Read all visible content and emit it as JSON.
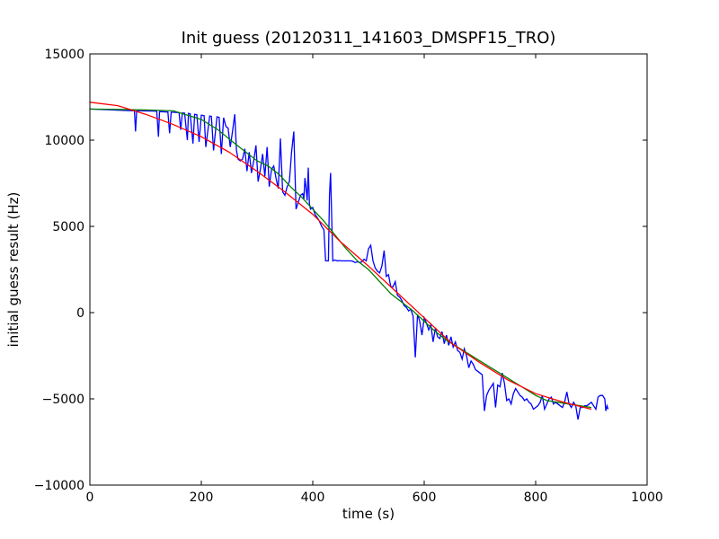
{
  "chart_data": {
    "type": "line",
    "title": "Init guess (20120311_141603_DMSPF15_TRO)",
    "xlabel": "time (s)",
    "ylabel": "initial guess result (Hz)",
    "xlim": [
      0,
      1000
    ],
    "ylim": [
      -10000,
      15000
    ],
    "xticks": [
      0,
      200,
      400,
      600,
      800,
      1000
    ],
    "yticks": [
      -10000,
      -5000,
      0,
      5000,
      10000,
      15000
    ],
    "xtick_labels": [
      "0",
      "200",
      "400",
      "600",
      "800",
      "1000"
    ],
    "ytick_labels": [
      "−10000",
      "−5000",
      "0",
      "5000",
      "10000",
      "15000"
    ],
    "grid": false,
    "legend": "none",
    "series": [
      {
        "color": "#0000ff",
        "x": [
          0,
          40,
          80,
          82,
          84,
          88,
          120,
          123,
          125,
          128,
          140,
          143,
          146,
          160,
          163,
          166,
          170,
          175,
          177,
          180,
          185,
          188,
          192,
          196,
          200,
          205,
          208,
          215,
          218,
          222,
          228,
          232,
          236,
          240,
          244,
          248,
          252,
          256,
          260,
          263,
          266,
          270,
          274,
          278,
          282,
          286,
          290,
          294,
          298,
          302,
          306,
          310,
          314,
          318,
          322,
          326,
          330,
          334,
          338,
          342,
          346,
          350,
          354,
          358,
          362,
          366,
          370,
          374,
          378,
          382,
          384,
          386,
          388,
          390,
          392,
          394,
          396,
          400,
          404,
          408,
          412,
          416,
          420,
          423,
          426,
          428,
          430,
          432,
          436,
          440,
          444,
          448,
          452,
          456,
          460,
          464,
          468,
          472,
          476,
          480,
          484,
          488,
          492,
          496,
          500,
          504,
          508,
          512,
          516,
          520,
          524,
          528,
          532,
          536,
          540,
          544,
          548,
          552,
          556,
          560,
          564,
          568,
          572,
          576,
          580,
          584,
          588,
          592,
          596,
          600,
          604,
          608,
          612,
          616,
          620,
          624,
          628,
          632,
          636,
          640,
          644,
          648,
          652,
          656,
          660,
          664,
          668,
          672,
          676,
          680,
          684,
          688,
          692,
          696,
          700,
          704,
          708,
          712,
          716,
          720,
          724,
          728,
          732,
          736,
          740,
          744,
          748,
          752,
          756,
          760,
          764,
          768,
          772,
          776,
          780,
          784,
          788,
          792,
          796,
          800,
          804,
          808,
          812,
          816,
          820,
          824,
          828,
          832,
          836,
          840,
          844,
          848,
          852,
          856,
          860,
          864,
          868,
          872,
          876,
          880,
          884,
          888,
          892,
          896,
          900,
          904,
          908,
          912,
          916,
          920,
          924,
          926,
          928,
          930
        ],
        "y": [
          11800,
          11750,
          11700,
          10500,
          11700,
          11700,
          11680,
          10200,
          11650,
          11650,
          11630,
          10400,
          11620,
          11600,
          10600,
          11580,
          11560,
          10000,
          11550,
          11530,
          9800,
          11500,
          11480,
          9900,
          11450,
          11420,
          9600,
          11400,
          11380,
          9400,
          11350,
          11320,
          9200,
          11300,
          10800,
          10700,
          9600,
          10500,
          11500,
          9400,
          8900,
          8800,
          8900,
          9500,
          8200,
          9300,
          8100,
          8800,
          9700,
          7600,
          8300,
          9200,
          7900,
          9600,
          7300,
          8300,
          8500,
          7800,
          7200,
          10100,
          7000,
          6800,
          7300,
          7600,
          9300,
          10500,
          6000,
          6400,
          6800,
          6900,
          6600,
          7800,
          7200,
          6500,
          8400,
          6300,
          6000,
          6100,
          5700,
          5500,
          5300,
          5000,
          4800,
          3000,
          3000,
          3000,
          6800,
          8100,
          3000,
          3050,
          3000,
          3020,
          3000,
          3000,
          3000,
          3000,
          3000,
          2980,
          2900,
          2950,
          2900,
          2950,
          3100,
          3000,
          3700,
          3900,
          3000,
          2600,
          2400,
          2300,
          2700,
          3600,
          2100,
          2200,
          1500,
          1500,
          1800,
          1000,
          900,
          700,
          400,
          300,
          100,
          200,
          -200,
          -2600,
          -100,
          -500,
          -1300,
          -300,
          -600,
          -1000,
          -700,
          -1700,
          -900,
          -1400,
          -1500,
          -1100,
          -1800,
          -1300,
          -1900,
          -1400,
          -2000,
          -1700,
          -2200,
          -2300,
          -2700,
          -2100,
          -2500,
          -3200,
          -2800,
          -3000,
          -3300,
          -3400,
          -3500,
          -3600,
          -5700,
          -4800,
          -4500,
          -4300,
          -4100,
          -5500,
          -4200,
          -4300,
          -3500,
          -4100,
          -5100,
          -5000,
          -5300,
          -4700,
          -4400,
          -4600,
          -4800,
          -4900,
          -5100,
          -5000,
          -5200,
          -5300,
          -5600,
          -5500,
          -5400,
          -5200,
          -4800,
          -5600,
          -5300,
          -5000,
          -4900,
          -5300,
          -5200,
          -5300,
          -5400,
          -5500,
          -5200,
          -4600,
          -5300,
          -5500,
          -5200,
          -5400,
          -6200,
          -5500,
          -5500,
          -5400,
          -5400,
          -5300,
          -5200,
          -5400,
          -5600,
          -4900,
          -4800,
          -4800,
          -5000,
          -5700,
          -5400,
          -5600
        ]
      },
      {
        "color": "#008000",
        "x": [
          0,
          50,
          100,
          150,
          200,
          230,
          260,
          280,
          300,
          320,
          340,
          360,
          380,
          400,
          420,
          440,
          460,
          480,
          500,
          520,
          540,
          560,
          580,
          600,
          620,
          640,
          660,
          680,
          700,
          720,
          740,
          760,
          780,
          800,
          820,
          840,
          860,
          880,
          900
        ],
        "y": [
          11800,
          11780,
          11750,
          11700,
          11200,
          10600,
          9800,
          9300,
          8800,
          8500,
          8000,
          7300,
          6700,
          6000,
          5300,
          4500,
          3700,
          3000,
          2500,
          1800,
          1100,
          600,
          100,
          -500,
          -1100,
          -1600,
          -2000,
          -2400,
          -2800,
          -3200,
          -3600,
          -4000,
          -4400,
          -4800,
          -5100,
          -5200,
          -5300,
          -5400,
          -5500
        ]
      },
      {
        "color": "#ff0000",
        "x": [
          0,
          50,
          100,
          150,
          200,
          250,
          300,
          350,
          400,
          450,
          500,
          550,
          600,
          650,
          700,
          750,
          800,
          850,
          900
        ],
        "y": [
          12200,
          12000,
          11500,
          10900,
          10200,
          9300,
          8200,
          7000,
          5700,
          4100,
          2700,
          1200,
          -300,
          -1800,
          -2900,
          -3900,
          -4700,
          -5200,
          -5600
        ]
      }
    ]
  }
}
